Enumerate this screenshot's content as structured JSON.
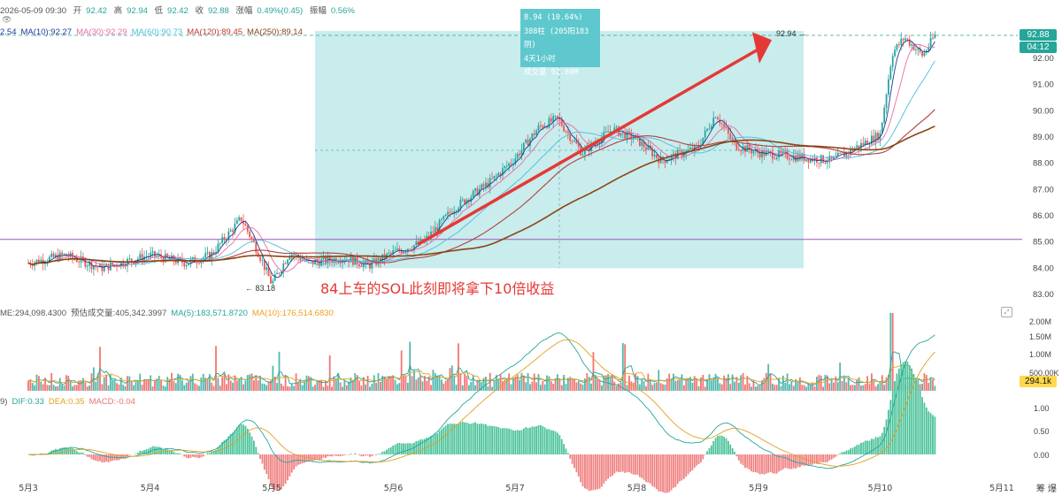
{
  "header": {
    "datetime": "2026-05-09 09:30",
    "open_label": "开",
    "open": "92.42",
    "high_label": "高",
    "high": "92.94",
    "low_label": "低",
    "low": "92.42",
    "close_label": "收",
    "close": "92.88",
    "change_label": "涨幅",
    "change": "0.49%(0.45)",
    "amp_label": "振幅",
    "amp": "0.56%"
  },
  "ma_legend": [
    {
      "text": "2.54",
      "color": "#1f3a93"
    },
    {
      "text": "MA(10):92.27",
      "color": "#1f3a93"
    },
    {
      "text": "MA(30):92.29",
      "color": "#ec6aa6"
    },
    {
      "text": "MA(60):90.73",
      "color": "#49c0d9"
    },
    {
      "text": "MA(120):89.45",
      "color": "#c0392b"
    },
    {
      "text": "MA(250):89.14",
      "color": "#8b4513"
    }
  ],
  "vol_legend": [
    {
      "text": "ME:294,098.4300",
      "color": "#555"
    },
    {
      "text": "预估成交量:405,342.3997",
      "color": "#555"
    },
    {
      "text": "MA(5):183,571.8720",
      "color": "#26a69a"
    },
    {
      "text": "MA(10):176,514.6830",
      "color": "#f0a020"
    }
  ],
  "macd_legend": [
    {
      "text": "9)",
      "color": "#555"
    },
    {
      "text": "DIF:0.33",
      "color": "#26a69a"
    },
    {
      "text": "DEA:0.35",
      "color": "#e0a020"
    },
    {
      "text": "MACD:-0.04",
      "color": "#e57373"
    }
  ],
  "tooltip": {
    "line1": "8.94 (10.64%)",
    "line2": "388柱 (205阳183阴)",
    "line3": "4天1小时",
    "line4": "成交量 92.80M"
  },
  "annotation": "84上车的SOL此刻即将拿下10倍收益",
  "price_tags": {
    "last": "92.88",
    "countdown": "04:12",
    "vol_last": "294.1k"
  },
  "low_marker": "83.18",
  "high_marker": "92.94",
  "corner_labels": "筹 爆",
  "colors": {
    "up": "#26a69a",
    "down": "#ef5350",
    "box": "#bfe9ea",
    "arrow": "#e53935",
    "level_line": "#9b59b6"
  },
  "chart_data": {
    "type": "line",
    "title": "",
    "x_ticks": [
      "5月3",
      "5月4",
      "5月5",
      "5月6",
      "5月7",
      "5月8",
      "5月9",
      "5月10",
      "5月11"
    ],
    "price_axis": {
      "ticks": [
        "92.00",
        "91.00",
        "90.00",
        "89.00",
        "88.00",
        "87.00",
        "86.00",
        "85.00",
        "84.00",
        "83.00"
      ],
      "ylim": [
        82.6,
        93.0
      ]
    },
    "volume_axis": {
      "ticks": [
        "2.00M",
        "1.50M",
        "1.00M",
        "500.00K"
      ]
    },
    "macd_axis": {
      "ticks": [
        "1.00",
        "0.50",
        "0.00"
      ]
    },
    "horizontal_level": 85.1,
    "measure_range": {
      "from": 84.0,
      "to": 92.94,
      "change": "8.94 (10.64%)"
    },
    "price_path_days": [
      [
        0.0,
        84.2
      ],
      [
        0.3,
        84.5
      ],
      [
        0.6,
        84.0
      ],
      [
        1.0,
        84.5
      ],
      [
        1.3,
        84.2
      ],
      [
        1.5,
        84.5
      ],
      [
        1.75,
        85.9
      ],
      [
        1.9,
        84.5
      ],
      [
        2.0,
        83.4
      ],
      [
        2.15,
        84.6
      ],
      [
        2.3,
        84.2
      ],
      [
        2.6,
        84.4
      ],
      [
        2.8,
        84.1
      ],
      [
        3.0,
        84.6
      ],
      [
        3.25,
        85.0
      ],
      [
        3.5,
        86.3
      ],
      [
        3.8,
        87.3
      ],
      [
        4.0,
        88.2
      ],
      [
        4.2,
        89.4
      ],
      [
        4.35,
        89.7
      ],
      [
        4.55,
        88.4
      ],
      [
        4.8,
        89.3
      ],
      [
        5.0,
        88.9
      ],
      [
        5.2,
        88.1
      ],
      [
        5.5,
        88.6
      ],
      [
        5.65,
        89.9
      ],
      [
        5.8,
        88.7
      ],
      [
        6.0,
        88.4
      ],
      [
        6.2,
        88.3
      ],
      [
        6.4,
        88.2
      ],
      [
        6.6,
        88.1
      ],
      [
        6.8,
        88.6
      ],
      [
        7.0,
        89.1
      ],
      [
        7.1,
        92.2
      ],
      [
        7.2,
        92.8
      ],
      [
        7.35,
        92.1
      ],
      [
        7.45,
        92.88
      ]
    ],
    "volume_spike_day": 7.1
  }
}
